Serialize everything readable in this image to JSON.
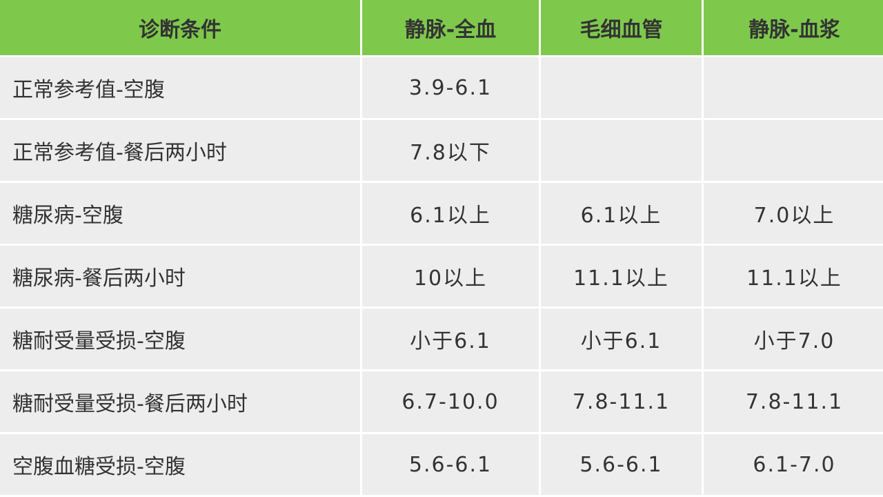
{
  "table": {
    "header": [
      "诊断条件",
      "静脉-全血",
      "毛细血管",
      "静脉-血浆"
    ],
    "rows": [
      [
        "正常参考值-空腹",
        "3.9-6.1",
        null,
        null
      ],
      [
        "正常参考值-餐后两小时",
        "7.8以下",
        null,
        null
      ],
      [
        "糖尿病-空腹",
        "6.1以上",
        "6.1以上",
        "7.0以上"
      ],
      [
        "糖尿病-餐后两小时",
        "10以上",
        "11.1以上",
        "11.1以上"
      ],
      [
        "糖耐受量受损-空腹",
        "小于6.1",
        "小于6.1",
        "小于7.0"
      ],
      [
        "糖耐受量受损-餐后两小时",
        "6.7-10.0",
        "7.8-11.1",
        "7.8-11.1"
      ],
      [
        "空腹血糖受损-空腹",
        "5.6-6.1",
        "5.6-6.1",
        "6.1-7.0"
      ]
    ]
  }
}
